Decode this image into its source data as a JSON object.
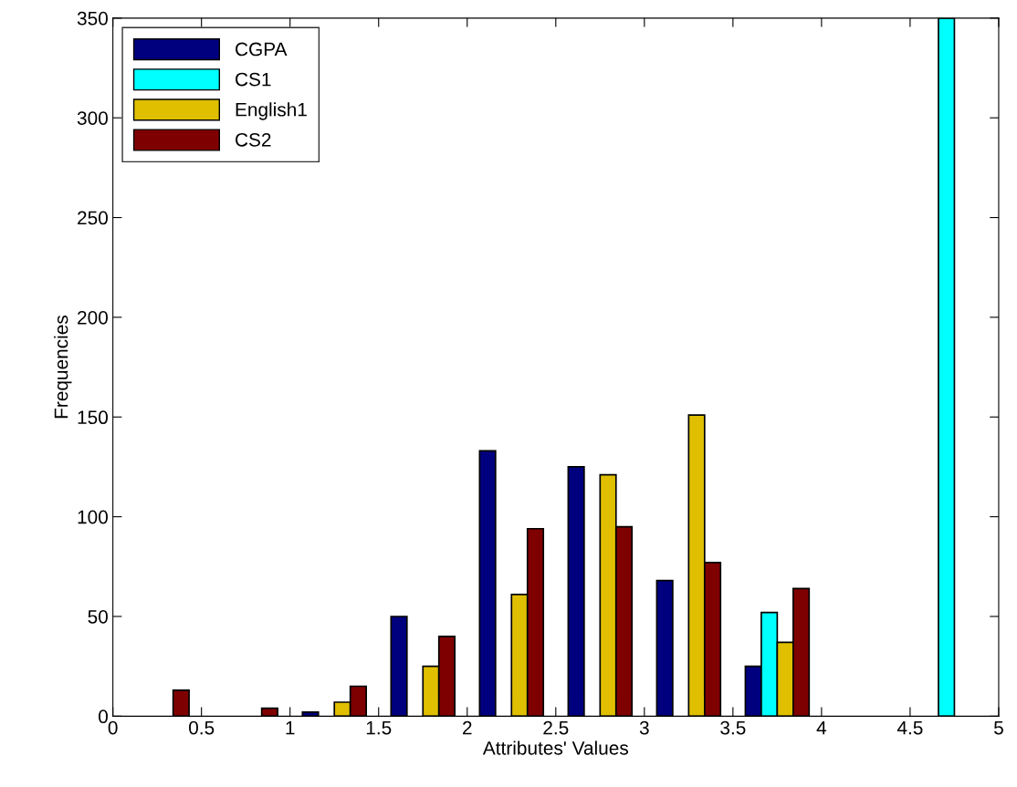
{
  "chart_data": {
    "type": "bar",
    "xlabel": "Attributes' Values",
    "ylabel": "Frequencies",
    "x": [
      0.25,
      0.75,
      1.25,
      1.75,
      2.25,
      2.75,
      3.25,
      3.75,
      4.25,
      4.75
    ],
    "series": [
      {
        "name": "CGPA",
        "color": "#00007f",
        "values": [
          null,
          null,
          2,
          50,
          133,
          125,
          68,
          25,
          null,
          null
        ]
      },
      {
        "name": "CS1",
        "color": "#00ffff",
        "values": [
          null,
          null,
          null,
          null,
          null,
          null,
          null,
          52,
          null,
          350
        ]
      },
      {
        "name": "English1",
        "color": "#dfbf00",
        "values": [
          null,
          null,
          7,
          25,
          61,
          121,
          151,
          37,
          null,
          null
        ]
      },
      {
        "name": "CS2",
        "color": "#7f0000",
        "values": [
          13,
          4,
          15,
          40,
          94,
          95,
          77,
          64,
          null,
          null
        ]
      }
    ],
    "xlim": [
      0,
      5
    ],
    "xticks": [
      0,
      0.5,
      1,
      1.5,
      2,
      2.5,
      3,
      3.5,
      4,
      4.5,
      5
    ],
    "ylim": [
      0,
      350
    ],
    "yticks": [
      0,
      50,
      100,
      150,
      200,
      250,
      300,
      350
    ],
    "legend": "top left",
    "grid": false
  }
}
